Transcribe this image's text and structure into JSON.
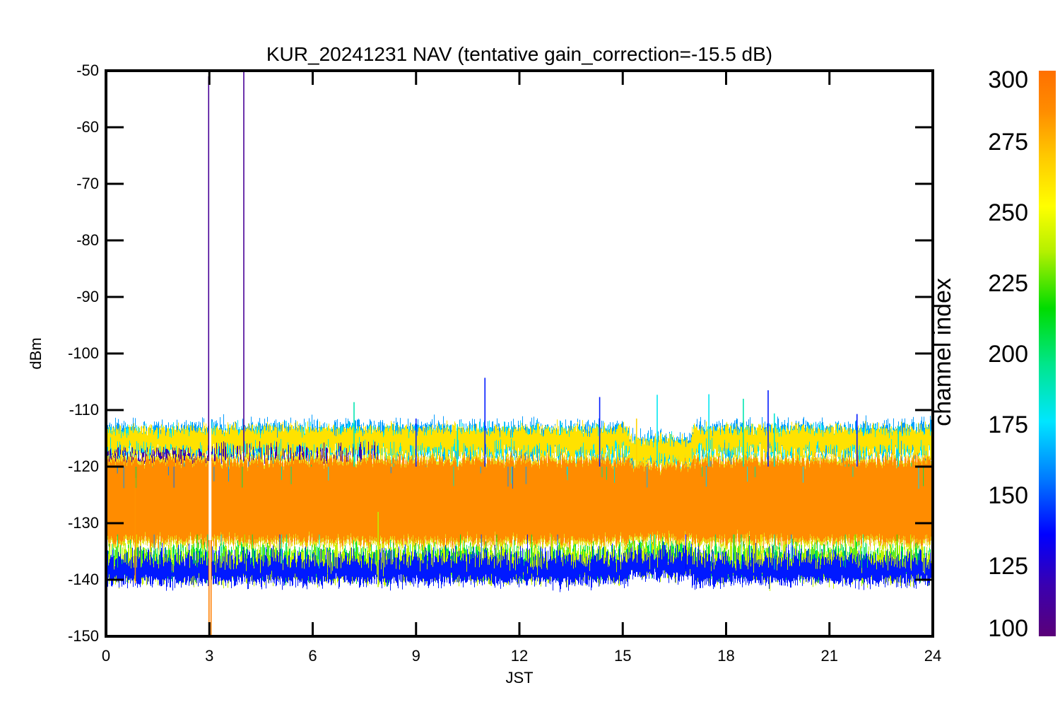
{
  "chart_data": {
    "type": "line",
    "title": "KUR_20241231 NAV (tentative gain_correction=-15.5 dB)",
    "xlabel": "JST",
    "ylabel": "dBm",
    "xlim": [
      0,
      24
    ],
    "ylim": [
      -150,
      -50
    ],
    "x_ticks": [
      "0",
      "3",
      "6",
      "9",
      "12",
      "15",
      "18",
      "21",
      "24"
    ],
    "y_ticks": [
      "-50",
      "-60",
      "-70",
      "-80",
      "-90",
      "-100",
      "-110",
      "-120",
      "-130",
      "-140",
      "-150"
    ],
    "grid": false,
    "colorbar": {
      "label": "channel index",
      "range": [
        100,
        300
      ],
      "ticks": [
        "300",
        "275",
        "250",
        "225",
        "200",
        "175",
        "150",
        "125",
        "100"
      ],
      "colormap": [
        "#5a0078",
        "#3a00b0",
        "#0000ff",
        "#007cff",
        "#00e6ff",
        "#00e68c",
        "#00dc00",
        "#b4f000",
        "#ffff00",
        "#ffc800",
        "#ff8c00",
        "#ff7000"
      ]
    },
    "noise_band": {
      "core_color": "#ff8c00",
      "core_range_dbm": [
        -133,
        -119
      ],
      "upper_edge_dbm": -118,
      "lower_edge_dbm": -135
    },
    "gap_at_jst": 3.02,
    "spikes": [
      {
        "x": 2.98,
        "y_top": -51,
        "y_bottom": -119,
        "channel": 110
      },
      {
        "x": 4.0,
        "y_top": -50,
        "y_bottom": -119,
        "channel": 110
      },
      {
        "x": 2.99,
        "y_top": -131,
        "y_bottom": -150,
        "channel": 290
      },
      {
        "x": 3.05,
        "y_top": -131,
        "y_bottom": -150,
        "channel": 290
      },
      {
        "x": 11.0,
        "y_top": -104.3,
        "y_bottom": -120,
        "channel": 140
      },
      {
        "x": 14.33,
        "y_top": -107.7,
        "y_bottom": -120,
        "channel": 140
      },
      {
        "x": 19.22,
        "y_top": -106.5,
        "y_bottom": -120,
        "channel": 140
      },
      {
        "x": 21.8,
        "y_top": -110.7,
        "y_bottom": -120,
        "channel": 140
      },
      {
        "x": 9.0,
        "y_top": -111.5,
        "y_bottom": -120,
        "channel": 140
      },
      {
        "x": 7.2,
        "y_top": -108.6,
        "y_bottom": -120,
        "channel": 185
      },
      {
        "x": 10.2,
        "y_top": -112.5,
        "y_bottom": -120,
        "channel": 180
      },
      {
        "x": 16.0,
        "y_top": -107.3,
        "y_bottom": -120,
        "channel": 175
      },
      {
        "x": 17.5,
        "y_top": -107.2,
        "y_bottom": -120,
        "channel": 175
      },
      {
        "x": 18.5,
        "y_top": -108.0,
        "y_bottom": -120,
        "channel": 185
      },
      {
        "x": 19.4,
        "y_top": -110.6,
        "y_bottom": -120,
        "channel": 180
      },
      {
        "x": 15.4,
        "y_top": -111.5,
        "y_bottom": -120,
        "channel": 260
      },
      {
        "x": 23.0,
        "y_top": -112.8,
        "y_bottom": -120,
        "channel": 180
      },
      {
        "x": 0.85,
        "y_top": -122,
        "y_bottom": -140.6,
        "channel": 280
      },
      {
        "x": 7.9,
        "y_top": -128,
        "y_bottom": -141.3,
        "channel": 230
      }
    ]
  }
}
